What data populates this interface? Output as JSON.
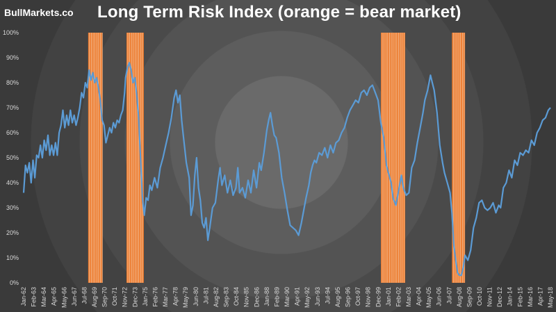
{
  "brand": "BullMarkets.co",
  "chart_data": {
    "type": "line",
    "title": "Long Term Risk Index (orange = bear market)",
    "ylim": [
      0,
      100
    ],
    "y_ticks": [
      "0%",
      "10%",
      "20%",
      "30%",
      "40%",
      "50%",
      "60%",
      "70%",
      "80%",
      "90%",
      "100%"
    ],
    "xlim": [
      1962.0,
      2018.33
    ],
    "x_ticks": [
      {
        "label": "Jan-62",
        "year": 1962.0
      },
      {
        "label": "Feb-63",
        "year": 1963.08
      },
      {
        "label": "Mar-64",
        "year": 1964.17
      },
      {
        "label": "Apr-65",
        "year": 1965.25
      },
      {
        "label": "May-66",
        "year": 1966.33
      },
      {
        "label": "Jun-67",
        "year": 1967.42
      },
      {
        "label": "Jul-68",
        "year": 1968.5
      },
      {
        "label": "Aug-69",
        "year": 1969.58
      },
      {
        "label": "Sep-70",
        "year": 1970.67
      },
      {
        "label": "Oct-71",
        "year": 1971.75
      },
      {
        "label": "Nov-72",
        "year": 1972.83
      },
      {
        "label": "Dec-73",
        "year": 1973.92
      },
      {
        "label": "Jan-75",
        "year": 1975.0
      },
      {
        "label": "Feb-76",
        "year": 1976.08
      },
      {
        "label": "Mar-77",
        "year": 1977.17
      },
      {
        "label": "Apr-78",
        "year": 1978.25
      },
      {
        "label": "May-79",
        "year": 1979.33
      },
      {
        "label": "Jun-80",
        "year": 1980.42
      },
      {
        "label": "Jul-81",
        "year": 1981.5
      },
      {
        "label": "Aug-82",
        "year": 1982.58
      },
      {
        "label": "Sep-83",
        "year": 1983.67
      },
      {
        "label": "Oct-84",
        "year": 1984.75
      },
      {
        "label": "Nov-85",
        "year": 1985.83
      },
      {
        "label": "Dec-86",
        "year": 1986.92
      },
      {
        "label": "Jan-88",
        "year": 1988.0
      },
      {
        "label": "Feb-89",
        "year": 1989.08
      },
      {
        "label": "Mar-90",
        "year": 1990.17
      },
      {
        "label": "Apr-91",
        "year": 1991.25
      },
      {
        "label": "May-92",
        "year": 1992.33
      },
      {
        "label": "Jun-93",
        "year": 1993.42
      },
      {
        "label": "Jul-94",
        "year": 1994.5
      },
      {
        "label": "Aug-95",
        "year": 1995.58
      },
      {
        "label": "Sep-96",
        "year": 1996.67
      },
      {
        "label": "Oct-97",
        "year": 1997.75
      },
      {
        "label": "Nov-98",
        "year": 1998.83
      },
      {
        "label": "Dec-99",
        "year": 1999.92
      },
      {
        "label": "Jan-01",
        "year": 2001.0
      },
      {
        "label": "Feb-02",
        "year": 2002.08
      },
      {
        "label": "Mar-03",
        "year": 2003.17
      },
      {
        "label": "Apr-04",
        "year": 2004.25
      },
      {
        "label": "May-05",
        "year": 2005.33
      },
      {
        "label": "Jun-06",
        "year": 2006.42
      },
      {
        "label": "Jul-07",
        "year": 2007.5
      },
      {
        "label": "Aug-08",
        "year": 2008.58
      },
      {
        "label": "Sep-09",
        "year": 2009.67
      },
      {
        "label": "Oct-10",
        "year": 2010.75
      },
      {
        "label": "Nov-11",
        "year": 2011.83
      },
      {
        "label": "Dec-12",
        "year": 2012.92
      },
      {
        "label": "Jan-14",
        "year": 2014.0
      },
      {
        "label": "Feb-15",
        "year": 2015.08
      },
      {
        "label": "Mar-16",
        "year": 2016.17
      },
      {
        "label": "Apr-17",
        "year": 2017.25
      },
      {
        "label": "May-18",
        "year": 2018.33
      }
    ],
    "bear_markets": [
      {
        "start": 1968.9,
        "end": 1970.45
      },
      {
        "start": 1973.0,
        "end": 1974.85
      },
      {
        "start": 2000.2,
        "end": 2002.8
      },
      {
        "start": 2007.8,
        "end": 2009.2
      }
    ],
    "series": [
      {
        "name": "Long Term Risk Index",
        "color": "#5b9bd5",
        "points": [
          [
            1962.0,
            36
          ],
          [
            1962.2,
            47
          ],
          [
            1962.4,
            44
          ],
          [
            1962.6,
            48
          ],
          [
            1962.8,
            40
          ],
          [
            1963.0,
            49
          ],
          [
            1963.2,
            42
          ],
          [
            1963.4,
            51
          ],
          [
            1963.6,
            50
          ],
          [
            1963.8,
            55
          ],
          [
            1964.0,
            50
          ],
          [
            1964.2,
            57
          ],
          [
            1964.4,
            53
          ],
          [
            1964.6,
            59
          ],
          [
            1964.8,
            51
          ],
          [
            1965.0,
            55
          ],
          [
            1965.2,
            51
          ],
          [
            1965.4,
            56
          ],
          [
            1965.6,
            51
          ],
          [
            1965.8,
            60
          ],
          [
            1966.0,
            63
          ],
          [
            1966.2,
            69
          ],
          [
            1966.4,
            62
          ],
          [
            1966.6,
            67
          ],
          [
            1966.8,
            63
          ],
          [
            1967.0,
            69
          ],
          [
            1967.2,
            64
          ],
          [
            1967.4,
            67
          ],
          [
            1967.6,
            63
          ],
          [
            1967.8,
            66
          ],
          [
            1968.0,
            70
          ],
          [
            1968.2,
            76
          ],
          [
            1968.4,
            74
          ],
          [
            1968.6,
            80
          ],
          [
            1968.8,
            78
          ],
          [
            1969.0,
            85
          ],
          [
            1969.2,
            81
          ],
          [
            1969.4,
            84
          ],
          [
            1969.6,
            80
          ],
          [
            1969.8,
            82
          ],
          [
            1970.0,
            78
          ],
          [
            1970.2,
            73
          ],
          [
            1970.4,
            65
          ],
          [
            1970.6,
            63
          ],
          [
            1970.8,
            56
          ],
          [
            1971.0,
            59
          ],
          [
            1971.2,
            62
          ],
          [
            1971.4,
            60
          ],
          [
            1971.6,
            64
          ],
          [
            1971.8,
            62
          ],
          [
            1972.0,
            65
          ],
          [
            1972.2,
            64
          ],
          [
            1972.4,
            67
          ],
          [
            1972.6,
            69
          ],
          [
            1972.8,
            76
          ],
          [
            1972.9,
            82
          ],
          [
            1973.1,
            86
          ],
          [
            1973.3,
            88
          ],
          [
            1973.5,
            85
          ],
          [
            1973.7,
            80
          ],
          [
            1973.9,
            82
          ],
          [
            1974.1,
            75
          ],
          [
            1974.3,
            66
          ],
          [
            1974.5,
            50
          ],
          [
            1974.7,
            34
          ],
          [
            1974.9,
            27
          ],
          [
            1975.1,
            34
          ],
          [
            1975.3,
            33
          ],
          [
            1975.5,
            39
          ],
          [
            1975.7,
            37
          ],
          [
            1976.0,
            42
          ],
          [
            1976.3,
            38
          ],
          [
            1976.6,
            46
          ],
          [
            1976.9,
            50
          ],
          [
            1977.2,
            55
          ],
          [
            1977.5,
            60
          ],
          [
            1977.8,
            66
          ],
          [
            1978.1,
            74
          ],
          [
            1978.3,
            77
          ],
          [
            1978.5,
            72
          ],
          [
            1978.7,
            75
          ],
          [
            1978.9,
            65
          ],
          [
            1979.1,
            58
          ],
          [
            1979.4,
            48
          ],
          [
            1979.7,
            42
          ],
          [
            1979.9,
            27
          ],
          [
            1980.1,
            31
          ],
          [
            1980.3,
            43
          ],
          [
            1980.5,
            50
          ],
          [
            1980.7,
            38
          ],
          [
            1980.9,
            33
          ],
          [
            1981.1,
            24
          ],
          [
            1981.3,
            22
          ],
          [
            1981.5,
            26
          ],
          [
            1981.7,
            17
          ],
          [
            1981.9,
            22
          ],
          [
            1982.2,
            30
          ],
          [
            1982.5,
            32
          ],
          [
            1982.8,
            41
          ],
          [
            1983.0,
            46
          ],
          [
            1983.2,
            39
          ],
          [
            1983.5,
            43
          ],
          [
            1983.8,
            36
          ],
          [
            1984.1,
            41
          ],
          [
            1984.4,
            35
          ],
          [
            1984.7,
            38
          ],
          [
            1984.9,
            46
          ],
          [
            1985.1,
            36
          ],
          [
            1985.4,
            38
          ],
          [
            1985.7,
            34
          ],
          [
            1986.0,
            41
          ],
          [
            1986.3,
            36
          ],
          [
            1986.6,
            45
          ],
          [
            1986.9,
            38
          ],
          [
            1987.2,
            48
          ],
          [
            1987.4,
            45
          ],
          [
            1987.7,
            52
          ],
          [
            1988.0,
            61
          ],
          [
            1988.2,
            65
          ],
          [
            1988.4,
            68
          ],
          [
            1988.6,
            63
          ],
          [
            1988.8,
            59
          ],
          [
            1989.0,
            58
          ],
          [
            1989.3,
            52
          ],
          [
            1989.6,
            42
          ],
          [
            1989.9,
            36
          ],
          [
            1990.2,
            29
          ],
          [
            1990.5,
            23
          ],
          [
            1990.8,
            22
          ],
          [
            1991.1,
            21
          ],
          [
            1991.4,
            19
          ],
          [
            1991.7,
            24
          ],
          [
            1992.0,
            30
          ],
          [
            1992.2,
            34
          ],
          [
            1992.5,
            39
          ],
          [
            1992.7,
            44
          ],
          [
            1992.9,
            47
          ],
          [
            1993.1,
            49
          ],
          [
            1993.3,
            48
          ],
          [
            1993.6,
            52
          ],
          [
            1993.9,
            51
          ],
          [
            1994.2,
            54
          ],
          [
            1994.5,
            50
          ],
          [
            1994.8,
            55
          ],
          [
            1995.1,
            52
          ],
          [
            1995.4,
            56
          ],
          [
            1995.7,
            57
          ],
          [
            1996.0,
            60
          ],
          [
            1996.3,
            62
          ],
          [
            1996.6,
            66
          ],
          [
            1996.9,
            69
          ],
          [
            1997.2,
            71
          ],
          [
            1997.5,
            73
          ],
          [
            1997.8,
            72
          ],
          [
            1998.1,
            76
          ],
          [
            1998.4,
            77
          ],
          [
            1998.7,
            75
          ],
          [
            1999.0,
            78
          ],
          [
            1999.3,
            79
          ],
          [
            1999.6,
            76
          ],
          [
            1999.9,
            73
          ],
          [
            2000.2,
            64
          ],
          [
            2000.5,
            58
          ],
          [
            2000.8,
            47
          ],
          [
            2001.0,
            44
          ],
          [
            2001.3,
            40
          ],
          [
            2001.5,
            34
          ],
          [
            2001.8,
            31
          ],
          [
            2002.1,
            37
          ],
          [
            2002.4,
            43
          ],
          [
            2002.6,
            38
          ],
          [
            2002.9,
            35
          ],
          [
            2003.2,
            36
          ],
          [
            2003.5,
            46
          ],
          [
            2003.8,
            49
          ],
          [
            2004.1,
            56
          ],
          [
            2004.4,
            62
          ],
          [
            2004.7,
            68
          ],
          [
            2004.9,
            73
          ],
          [
            2005.2,
            77
          ],
          [
            2005.5,
            83
          ],
          [
            2005.7,
            80
          ],
          [
            2005.9,
            77
          ],
          [
            2006.2,
            68
          ],
          [
            2006.5,
            55
          ],
          [
            2006.8,
            48
          ],
          [
            2007.0,
            44
          ],
          [
            2007.3,
            40
          ],
          [
            2007.6,
            36
          ],
          [
            2007.8,
            28
          ],
          [
            2008.0,
            15
          ],
          [
            2008.2,
            9
          ],
          [
            2008.4,
            4
          ],
          [
            2008.6,
            3
          ],
          [
            2008.8,
            3
          ],
          [
            2009.0,
            6
          ],
          [
            2009.2,
            11
          ],
          [
            2009.5,
            9
          ],
          [
            2009.8,
            13
          ],
          [
            2010.1,
            22
          ],
          [
            2010.4,
            26
          ],
          [
            2010.7,
            32
          ],
          [
            2011.0,
            33
          ],
          [
            2011.3,
            30
          ],
          [
            2011.6,
            29
          ],
          [
            2011.9,
            30
          ],
          [
            2012.2,
            32
          ],
          [
            2012.5,
            28
          ],
          [
            2012.8,
            31
          ],
          [
            2013.0,
            30
          ],
          [
            2013.3,
            38
          ],
          [
            2013.6,
            40
          ],
          [
            2013.9,
            45
          ],
          [
            2014.2,
            42
          ],
          [
            2014.5,
            49
          ],
          [
            2014.8,
            47
          ],
          [
            2015.1,
            52
          ],
          [
            2015.4,
            51
          ],
          [
            2015.7,
            53
          ],
          [
            2016.0,
            52
          ],
          [
            2016.3,
            57
          ],
          [
            2016.6,
            55
          ],
          [
            2016.9,
            60
          ],
          [
            2017.2,
            62
          ],
          [
            2017.5,
            65
          ],
          [
            2017.8,
            66
          ],
          [
            2018.1,
            69
          ],
          [
            2018.33,
            70
          ]
        ]
      }
    ]
  }
}
